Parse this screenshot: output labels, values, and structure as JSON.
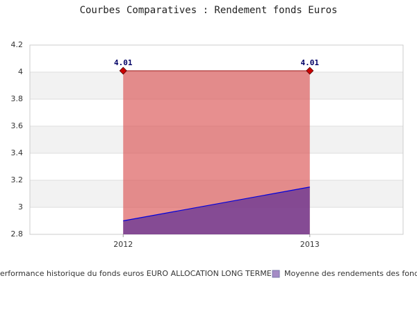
{
  "chart_data": {
    "type": "area",
    "title": "Courbes Comparatives : Rendement fonds Euros",
    "categories": [
      "2012",
      "2013"
    ],
    "series": [
      {
        "name": "erformance historique du fonds euros EURO ALLOCATION LONG TERME",
        "color": "#dd6060",
        "line_color": "#a52a2a",
        "values": [
          4.01,
          4.01
        ]
      },
      {
        "name": "Moyenne des rendements des fonds",
        "color": "#5b2d96",
        "line_color": "#0000dd",
        "values": [
          2.9,
          3.15
        ]
      }
    ],
    "ylim": [
      2.8,
      4.2
    ],
    "yticks": [
      2.8,
      3.0,
      3.2,
      3.4,
      3.6,
      3.8,
      4.0,
      4.2
    ],
    "grid": true
  }
}
